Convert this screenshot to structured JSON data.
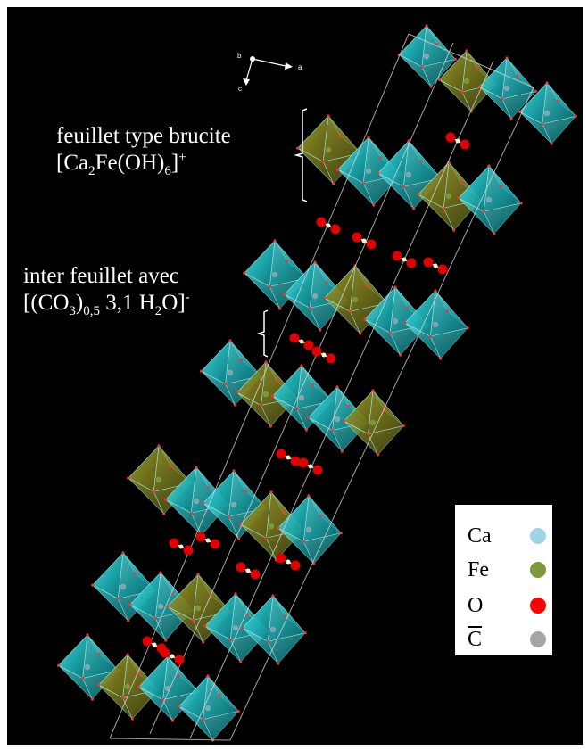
{
  "annotations": {
    "brucite_line1": "feuillet type brucite",
    "brucite_formula": {
      "pre": "[Ca",
      "sub1": "2",
      "mid": "Fe(OH)",
      "sub2": "6",
      "post": "]",
      "sup": "+"
    },
    "interlayer_line1": "inter feuillet avec",
    "interlayer_formula": {
      "pre": "[(CO",
      "sub1": "3",
      "mid1": ")",
      "sub2": "0,5",
      "mid2": " 3,1 H",
      "sub3": "2",
      "post": "O]",
      "sup": "-"
    }
  },
  "axes": {
    "a": "a",
    "b": "b",
    "c": "c"
  },
  "legend": {
    "items": [
      {
        "label": "Ca",
        "color": "#9fd4e3"
      },
      {
        "label": "Fe",
        "color": "#7a9a3a"
      },
      {
        "label": "O",
        "color": "#ff0000"
      },
      {
        "label": "C",
        "color": "#a6a6a6"
      }
    ]
  },
  "colors": {
    "background": "#000000",
    "octahedron_cyan": "#1fb3b8",
    "octahedron_olive": "#8a8a1e",
    "cell_edge": "#d9d9d9"
  }
}
